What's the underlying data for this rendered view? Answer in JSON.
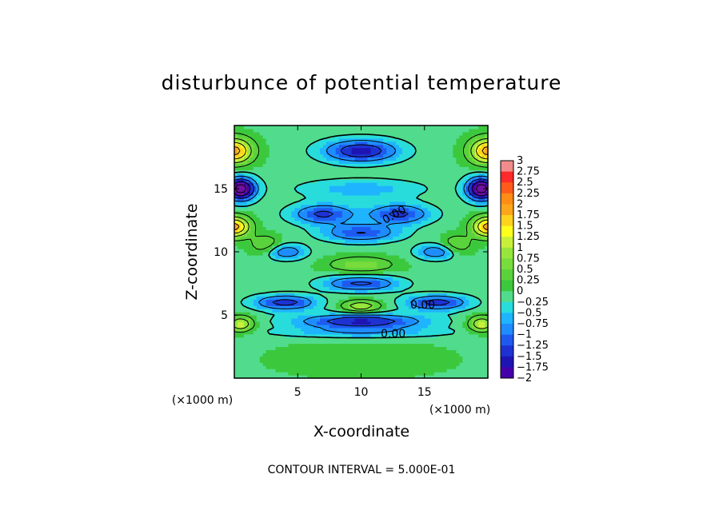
{
  "chart_data": {
    "type": "heatmap",
    "title": "disturbunce of potential temperature",
    "xlabel": "X-coordinate",
    "ylabel": "Z-coordinate",
    "x_unit_label": "(×1000 m)",
    "z_unit_label": "(×1000 m)",
    "xlim": [
      0,
      20
    ],
    "ylim": [
      0,
      20
    ],
    "x_ticks": [
      5,
      10,
      15
    ],
    "x_tick_labels": [
      "5",
      "10",
      "15"
    ],
    "y_ticks": [
      5,
      10,
      15
    ],
    "y_tick_labels": [
      "5",
      "10",
      "15"
    ],
    "footer": "CONTOUR INTERVAL = 5.000E-01",
    "contour_labels": [
      "0.00",
      "0.00",
      "0.00"
    ],
    "colorbar": {
      "levels": [
        3,
        2.75,
        2.5,
        2.25,
        2,
        1.75,
        1.5,
        1.25,
        1,
        0.75,
        0.5,
        0.25,
        0,
        -0.25,
        -0.5,
        -0.75,
        -1,
        -1.25,
        -1.5,
        -1.75,
        -2
      ],
      "labels": [
        "3",
        "2.75",
        "2.5",
        "2.25",
        "2",
        "1.75",
        "1.5",
        "1.25",
        "1",
        "0.75",
        "0.5",
        "0.25",
        "0",
        "−0.25",
        "−0.5",
        "−0.75",
        "−1",
        "−1.25",
        "−1.5",
        "−1.75",
        "−2"
      ],
      "colors": [
        "#f28c8c",
        "#ff2a2a",
        "#ff5a1a",
        "#ff8c14",
        "#ffa51a",
        "#ffd21e",
        "#ffff1e",
        "#c8f03a",
        "#96e63c",
        "#78dc3c",
        "#5ad23c",
        "#3cc83c",
        "#50dc8c",
        "#28dcdc",
        "#1eb4ff",
        "#1e8cff",
        "#1e5af0",
        "#1e32d2",
        "#1e14b4",
        "#4600aa",
        "#6e10a0"
      ]
    },
    "field_model": {
      "background": 0.2,
      "bands": [
        {
          "z": 18.0,
          "amp": -1.6,
          "xc": 10,
          "xw": 3.0,
          "zw": 0.9
        },
        {
          "z": 15.0,
          "amp": -0.6,
          "xc": 10,
          "xw": 5.0,
          "zw": 0.8
        },
        {
          "z": 13.0,
          "amp": -1.3,
          "xc": 7,
          "xw": 2.5,
          "zw": 0.8
        },
        {
          "z": 13.0,
          "amp": -1.3,
          "xc": 13,
          "xw": 2.5,
          "zw": 0.8
        },
        {
          "z": 11.5,
          "amp": -1.2,
          "xc": 10,
          "xw": 3.0,
          "zw": 0.7
        },
        {
          "z": 9.0,
          "amp": 0.8,
          "xc": 10,
          "xw": 2.5,
          "zw": 0.6
        },
        {
          "z": 10.0,
          "amp": -1.1,
          "xc": 4,
          "xw": 1.6,
          "zw": 0.6
        },
        {
          "z": 10.0,
          "amp": -1.1,
          "xc": 16,
          "xw": 1.6,
          "zw": 0.6
        },
        {
          "z": 10.5,
          "amp": 0.7,
          "xc": 2.5,
          "xw": 1.2,
          "zw": 0.8
        },
        {
          "z": 10.5,
          "amp": 0.7,
          "xc": 17.5,
          "xw": 1.2,
          "zw": 0.8
        },
        {
          "z": 7.5,
          "amp": -1.3,
          "xc": 10,
          "xw": 3.0,
          "zw": 0.6
        },
        {
          "z": 6.0,
          "amp": -1.4,
          "xc": 4,
          "xw": 2.5,
          "zw": 0.6
        },
        {
          "z": 6.0,
          "amp": -1.4,
          "xc": 16,
          "xw": 2.5,
          "zw": 0.6
        },
        {
          "z": 5.7,
          "amp": 1.2,
          "xc": 10,
          "xw": 1.5,
          "zw": 0.45
        },
        {
          "z": 4.5,
          "amp": -1.6,
          "xc": 10,
          "xw": 5.0,
          "zw": 0.6
        },
        {
          "z": 3.6,
          "amp": -0.6,
          "xc": 10,
          "xw": 7.0,
          "zw": 0.4
        },
        {
          "z": 1.5,
          "amp": 0.3,
          "xc": 10,
          "xw": 6.0,
          "zw": 1.2
        },
        {
          "z": 18.0,
          "amp": 2.0,
          "xc": 0,
          "xw": 1.4,
          "zw": 1.0
        },
        {
          "z": 18.0,
          "amp": 2.0,
          "xc": 20,
          "xw": 1.4,
          "zw": 1.0
        },
        {
          "z": 15.0,
          "amp": -2.5,
          "xc": 0.5,
          "xw": 1.2,
          "zw": 0.9
        },
        {
          "z": 15.0,
          "amp": -2.5,
          "xc": 19.5,
          "xw": 1.2,
          "zw": 0.9
        },
        {
          "z": 12.0,
          "amp": 2.0,
          "xc": 0,
          "xw": 1.2,
          "zw": 0.8
        },
        {
          "z": 12.0,
          "amp": 2.0,
          "xc": 20,
          "xw": 1.2,
          "zw": 0.8
        },
        {
          "z": 4.3,
          "amp": 1.3,
          "xc": 0.5,
          "xw": 1.0,
          "zw": 0.6
        },
        {
          "z": 4.3,
          "amp": 1.3,
          "xc": 19.5,
          "xw": 1.0,
          "zw": 0.6
        }
      ]
    }
  }
}
